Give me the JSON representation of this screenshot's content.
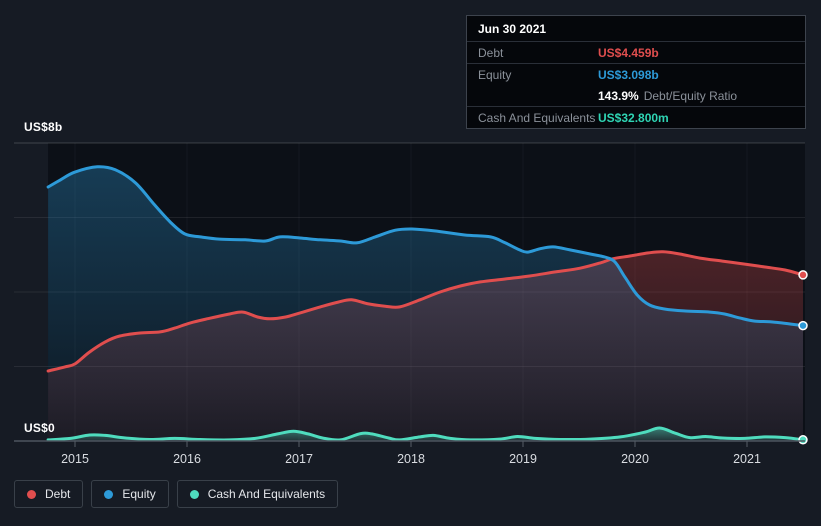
{
  "colors": {
    "background": "#161b24",
    "plot_background": "#0c1017",
    "debt": "#e04e4e",
    "equity": "#2d9ad8",
    "cash": "#4fdcbe",
    "cash_text": "#2fd5b4",
    "grid_strong": "rgba(255,255,255,0.18)",
    "grid_faint": "rgba(255,255,255,0.08)",
    "grid_vertical": "rgba(255,255,255,0.04)",
    "zero_line": "#4d545e",
    "tick": "#565c66",
    "tick_label": "#d9dce1"
  },
  "tooltip": {
    "date": "Jun 30 2021",
    "debt_label": "Debt",
    "debt_value": "US$4.459b",
    "equity_label": "Equity",
    "equity_value": "US$3.098b",
    "ratio_value": "143.9%",
    "ratio_suffix": "Debt/Equity Ratio",
    "cash_label": "Cash And Equivalents",
    "cash_value": "US$32.800m"
  },
  "legend": {
    "debt": "Debt",
    "equity": "Equity",
    "cash": "Cash And Equivalents"
  },
  "chart_data": {
    "type": "area",
    "title": "Debt to Equity history",
    "y_unit": "US$ billions",
    "y_axis": {
      "top_label": "US$8b",
      "bottom_label": "US$0",
      "min": 0,
      "max": 8,
      "gridline_values": [
        8,
        6,
        4,
        2,
        0
      ]
    },
    "x_range": [
      2014.76,
      2021.5
    ],
    "x_axis": {
      "ticks": [
        {
          "year": 2015,
          "label": "2015"
        },
        {
          "year": 2016,
          "label": "2016"
        },
        {
          "year": 2017,
          "label": "2017"
        },
        {
          "year": 2018,
          "label": "2018"
        },
        {
          "year": 2019,
          "label": "2019"
        },
        {
          "year": 2020,
          "label": "2020"
        },
        {
          "year": 2021,
          "label": "2021"
        }
      ]
    },
    "series": [
      {
        "name": "Debt",
        "key": "debt",
        "color": "#e04e4e",
        "end_value_label": "US$4.459b",
        "points": [
          [
            2014.76,
            1.88
          ],
          [
            2014.91,
            1.99
          ],
          [
            2015.0,
            2.07
          ],
          [
            2015.13,
            2.39
          ],
          [
            2015.27,
            2.66
          ],
          [
            2015.4,
            2.82
          ],
          [
            2015.58,
            2.9
          ],
          [
            2015.76,
            2.93
          ],
          [
            2015.89,
            3.03
          ],
          [
            2016.03,
            3.17
          ],
          [
            2016.21,
            3.3
          ],
          [
            2016.38,
            3.41
          ],
          [
            2016.5,
            3.46
          ],
          [
            2016.63,
            3.33
          ],
          [
            2016.74,
            3.28
          ],
          [
            2016.88,
            3.33
          ],
          [
            2017.01,
            3.44
          ],
          [
            2017.19,
            3.6
          ],
          [
            2017.35,
            3.73
          ],
          [
            2017.47,
            3.79
          ],
          [
            2017.62,
            3.68
          ],
          [
            2017.77,
            3.62
          ],
          [
            2017.9,
            3.6
          ],
          [
            2018.08,
            3.79
          ],
          [
            2018.26,
            4.0
          ],
          [
            2018.44,
            4.16
          ],
          [
            2018.62,
            4.27
          ],
          [
            2018.84,
            4.35
          ],
          [
            2019.06,
            4.43
          ],
          [
            2019.29,
            4.54
          ],
          [
            2019.51,
            4.64
          ],
          [
            2019.69,
            4.78
          ],
          [
            2019.8,
            4.89
          ],
          [
            2019.96,
            4.97
          ],
          [
            2020.12,
            5.05
          ],
          [
            2020.25,
            5.08
          ],
          [
            2020.4,
            5.02
          ],
          [
            2020.58,
            4.91
          ],
          [
            2020.78,
            4.83
          ],
          [
            2020.98,
            4.75
          ],
          [
            2021.16,
            4.67
          ],
          [
            2021.34,
            4.59
          ],
          [
            2021.5,
            4.459
          ]
        ]
      },
      {
        "name": "Equity",
        "key": "equity",
        "color": "#2d9ad8",
        "end_value_label": "US$3.098b",
        "points": [
          [
            2014.76,
            6.82
          ],
          [
            2014.87,
            7.01
          ],
          [
            2015.0,
            7.22
          ],
          [
            2015.2,
            7.36
          ],
          [
            2015.36,
            7.28
          ],
          [
            2015.54,
            6.93
          ],
          [
            2015.71,
            6.34
          ],
          [
            2015.85,
            5.88
          ],
          [
            2015.98,
            5.56
          ],
          [
            2016.12,
            5.48
          ],
          [
            2016.29,
            5.42
          ],
          [
            2016.52,
            5.4
          ],
          [
            2016.7,
            5.37
          ],
          [
            2016.83,
            5.48
          ],
          [
            2017.01,
            5.45
          ],
          [
            2017.19,
            5.4
          ],
          [
            2017.37,
            5.37
          ],
          [
            2017.52,
            5.32
          ],
          [
            2017.68,
            5.48
          ],
          [
            2017.86,
            5.66
          ],
          [
            2018.01,
            5.69
          ],
          [
            2018.21,
            5.64
          ],
          [
            2018.48,
            5.53
          ],
          [
            2018.71,
            5.48
          ],
          [
            2018.84,
            5.32
          ],
          [
            2018.97,
            5.13
          ],
          [
            2019.04,
            5.07
          ],
          [
            2019.15,
            5.16
          ],
          [
            2019.27,
            5.21
          ],
          [
            2019.42,
            5.13
          ],
          [
            2019.6,
            5.02
          ],
          [
            2019.73,
            4.94
          ],
          [
            2019.82,
            4.81
          ],
          [
            2019.91,
            4.4
          ],
          [
            2020.02,
            3.92
          ],
          [
            2020.13,
            3.65
          ],
          [
            2020.27,
            3.54
          ],
          [
            2020.45,
            3.49
          ],
          [
            2020.67,
            3.46
          ],
          [
            2020.8,
            3.41
          ],
          [
            2020.94,
            3.3
          ],
          [
            2021.07,
            3.22
          ],
          [
            2021.25,
            3.19
          ],
          [
            2021.5,
            3.098
          ]
        ]
      },
      {
        "name": "Cash And Equivalents",
        "key": "cash",
        "color": "#4fdcbe",
        "end_value_label": "US$32.800m",
        "points": [
          [
            2014.76,
            0.03
          ],
          [
            2014.96,
            0.07
          ],
          [
            2015.13,
            0.16
          ],
          [
            2015.27,
            0.15
          ],
          [
            2015.45,
            0.08
          ],
          [
            2015.67,
            0.04
          ],
          [
            2015.89,
            0.07
          ],
          [
            2016.12,
            0.04
          ],
          [
            2016.38,
            0.03
          ],
          [
            2016.61,
            0.07
          ],
          [
            2016.81,
            0.19
          ],
          [
            2016.95,
            0.26
          ],
          [
            2017.08,
            0.19
          ],
          [
            2017.21,
            0.08
          ],
          [
            2017.37,
            0.03
          ],
          [
            2017.55,
            0.2
          ],
          [
            2017.65,
            0.19
          ],
          [
            2017.8,
            0.08
          ],
          [
            2017.9,
            0.03
          ],
          [
            2018.08,
            0.11
          ],
          [
            2018.2,
            0.15
          ],
          [
            2018.35,
            0.07
          ],
          [
            2018.53,
            0.03
          ],
          [
            2018.79,
            0.05
          ],
          [
            2018.95,
            0.12
          ],
          [
            2019.11,
            0.07
          ],
          [
            2019.33,
            0.04
          ],
          [
            2019.6,
            0.05
          ],
          [
            2019.87,
            0.11
          ],
          [
            2020.09,
            0.24
          ],
          [
            2020.22,
            0.35
          ],
          [
            2020.36,
            0.21
          ],
          [
            2020.49,
            0.09
          ],
          [
            2020.63,
            0.12
          ],
          [
            2020.78,
            0.08
          ],
          [
            2020.98,
            0.07
          ],
          [
            2021.16,
            0.11
          ],
          [
            2021.34,
            0.09
          ],
          [
            2021.5,
            0.033
          ]
        ]
      }
    ]
  }
}
